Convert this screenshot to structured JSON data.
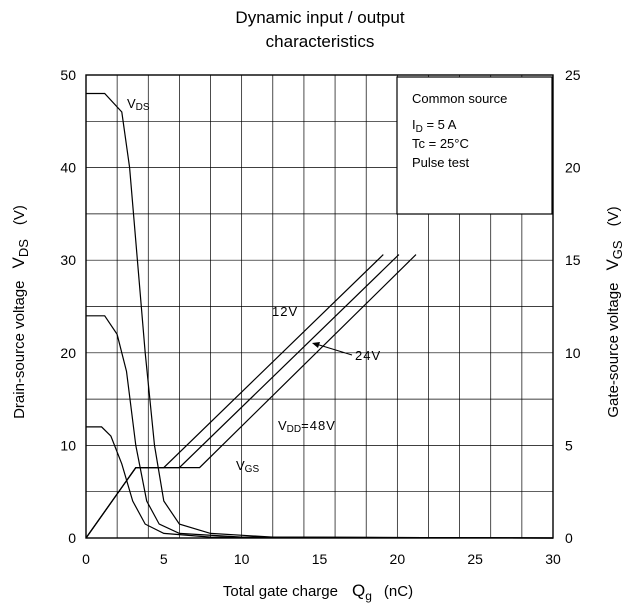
{
  "chart_data": {
    "type": "line",
    "title": [
      "Dynamic input / output",
      "characteristics"
    ],
    "xlabel": {
      "main": "Total gate charge",
      "sym": "Q",
      "sub": "g",
      "unit": "(nC)"
    },
    "ylabel_left": {
      "main": "Drain-source voltage",
      "sym": "V",
      "sub": "DS",
      "unit": "(V)"
    },
    "ylabel_right": {
      "main": "Gate-source voltage",
      "sym": "V",
      "sub": "GS",
      "unit": "(V)"
    },
    "xlim": [
      0,
      30
    ],
    "ylim_left": [
      0,
      50
    ],
    "ylim_right": [
      0,
      25
    ],
    "x_ticks": [
      "0",
      "5",
      "10",
      "15",
      "20",
      "25",
      "30"
    ],
    "y_ticks_left": [
      "0",
      "10",
      "20",
      "30",
      "40",
      "50"
    ],
    "y_ticks_right": [
      "0",
      "5",
      "10",
      "15",
      "20",
      "25"
    ],
    "grid": true,
    "series": [
      {
        "axis": "left",
        "points": [
          [
            0,
            48
          ],
          [
            1.2,
            48
          ],
          [
            2.3,
            46
          ],
          [
            2.8,
            40
          ],
          [
            3.3,
            30
          ],
          [
            3.8,
            20
          ],
          [
            4.4,
            10
          ],
          [
            5.0,
            4
          ],
          [
            6.0,
            1.5
          ],
          [
            8.0,
            0.5
          ],
          [
            12,
            0.1
          ],
          [
            30,
            0
          ]
        ]
      },
      {
        "axis": "left",
        "points": [
          [
            0,
            24
          ],
          [
            1.2,
            24
          ],
          [
            2.0,
            22
          ],
          [
            2.6,
            18
          ],
          [
            3.2,
            10
          ],
          [
            3.9,
            4
          ],
          [
            4.7,
            1.5
          ],
          [
            6.0,
            0.5
          ],
          [
            10,
            0.1
          ],
          [
            30,
            0
          ]
        ]
      },
      {
        "axis": "left",
        "points": [
          [
            0,
            12
          ],
          [
            1.0,
            12
          ],
          [
            1.6,
            11
          ],
          [
            2.3,
            8
          ],
          [
            3.0,
            4
          ],
          [
            3.8,
            1.5
          ],
          [
            5.0,
            0.5
          ],
          [
            8.0,
            0.1
          ],
          [
            30,
            0
          ]
        ]
      },
      {
        "axis": "right",
        "points": [
          [
            0,
            0
          ],
          [
            3.2,
            3.8
          ],
          [
            5.0,
            3.8
          ],
          [
            19.1,
            15.3
          ]
        ]
      },
      {
        "axis": "right",
        "points": [
          [
            0,
            0
          ],
          [
            3.2,
            3.8
          ],
          [
            6.0,
            3.8
          ],
          [
            20.1,
            15.3
          ]
        ]
      },
      {
        "axis": "right",
        "points": [
          [
            0,
            0
          ],
          [
            3.2,
            3.8
          ],
          [
            7.3,
            3.8
          ],
          [
            21.2,
            15.3
          ]
        ]
      }
    ],
    "annotations": {
      "vds": {
        "sym": "V",
        "sub": "DS"
      },
      "vgs": {
        "sym": "V",
        "sub": "GS"
      },
      "v12": "12V",
      "v24": "24V",
      "vdd": {
        "sym": "V",
        "sub": "DD",
        "rest": "=48V"
      }
    },
    "legend_box": {
      "line1": "Common source",
      "line2": {
        "sym": "I",
        "sub": "D",
        "rest": " = 5 A"
      },
      "line3": "Tc = 25°C",
      "line4": "Pulse test"
    }
  }
}
